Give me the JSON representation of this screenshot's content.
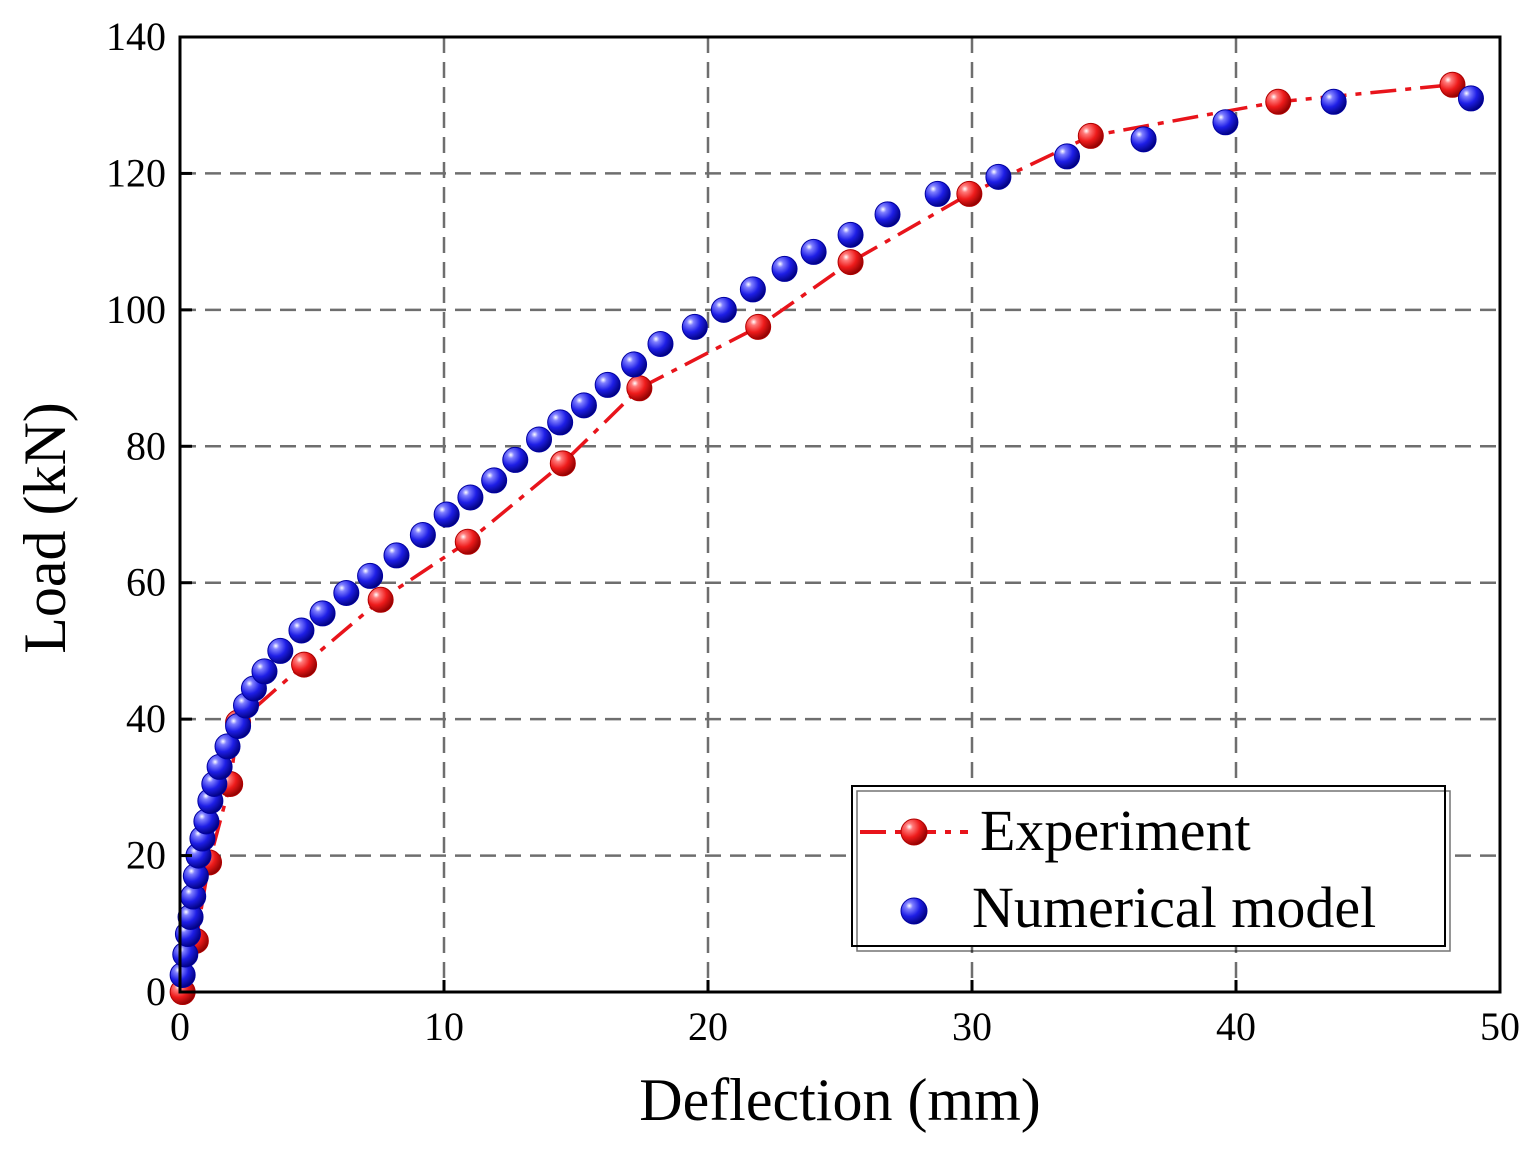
{
  "chart_data": {
    "type": "scatter",
    "title": "",
    "xlabel": "Deflection (mm)",
    "ylabel": "Load (kN)",
    "xlim": [
      0,
      50
    ],
    "ylim": [
      0,
      140
    ],
    "xticks": [
      "0",
      "10",
      "20",
      "30",
      "40",
      "50"
    ],
    "yticks": [
      "0",
      "20",
      "40",
      "60",
      "80",
      "100",
      "120",
      "140"
    ],
    "grid": true,
    "legend_position": "bottom-right",
    "series": [
      {
        "name": "Experiment",
        "style": "dash-dot line with markers",
        "color": "#e8141b",
        "x": [
          0.1,
          0.6,
          1.1,
          1.9,
          2.2,
          4.7,
          7.6,
          10.9,
          14.5,
          17.4,
          21.9,
          25.4,
          29.9,
          34.5,
          41.6,
          48.2
        ],
        "y": [
          0,
          7.5,
          19,
          30.5,
          39.5,
          48,
          57.5,
          66,
          77.5,
          88.5,
          97.5,
          107,
          117,
          125.5,
          130.5,
          133
        ]
      },
      {
        "name": "Numerical model",
        "style": "markers",
        "color": "#1e1ee6",
        "x": [
          0.1,
          0.2,
          0.3,
          0.4,
          0.5,
          0.6,
          0.7,
          0.85,
          1.0,
          1.15,
          1.3,
          1.5,
          1.8,
          2.2,
          2.5,
          2.8,
          3.2,
          3.8,
          4.6,
          5.4,
          6.3,
          7.2,
          8.2,
          9.2,
          10.1,
          11.0,
          11.9,
          12.7,
          13.6,
          14.4,
          15.3,
          16.2,
          17.2,
          18.2,
          19.5,
          20.6,
          21.7,
          22.9,
          24.0,
          25.4,
          26.8,
          28.7,
          31.0,
          33.6,
          36.5,
          39.6,
          43.7,
          48.9
        ],
        "y": [
          2.5,
          5.5,
          8.5,
          11,
          14,
          17,
          20,
          22.5,
          25,
          28,
          30.5,
          33,
          36,
          39,
          42,
          44.5,
          47,
          50,
          53,
          55.5,
          58.5,
          61,
          64,
          67,
          70,
          72.5,
          75,
          78,
          81,
          83.5,
          86,
          89,
          92,
          95,
          97.5,
          100,
          103,
          106,
          108.5,
          111,
          114,
          117,
          119.5,
          122.5,
          125,
          127.5,
          130.5,
          131
        ]
      }
    ]
  }
}
